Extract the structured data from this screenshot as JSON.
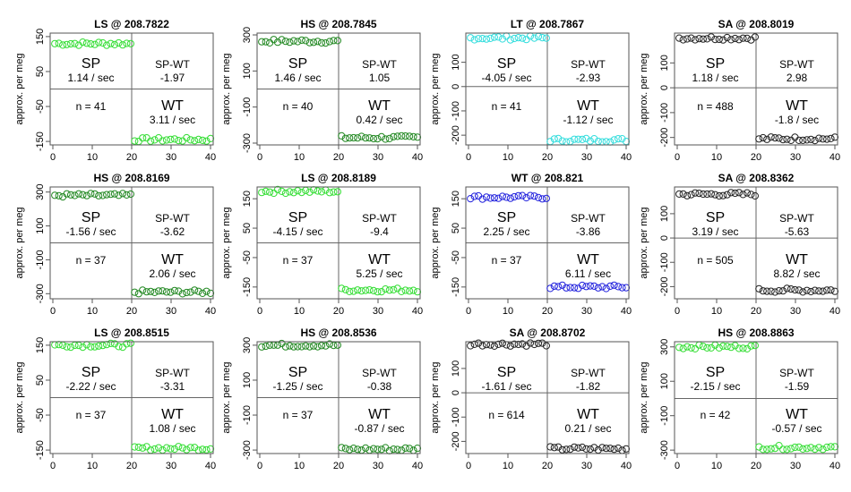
{
  "figure": {
    "ylabel": "approx. per meg",
    "xlim": [
      0,
      40
    ],
    "xticks": [
      0,
      10,
      20,
      30,
      40
    ],
    "quadrant_labels": {
      "sp": "SP",
      "wt": "WT",
      "diff": "SP-WT"
    },
    "n_prefix": "n = "
  },
  "colors": {
    "light_green": "#33dd33",
    "dark_green": "#228822",
    "cyan": "#33dddd",
    "blue": "#2222dd",
    "black": "#222222",
    "axis": "#555555",
    "divider": "#666666"
  },
  "chart_data": [
    {
      "type": "scatter",
      "title": "LS @ 208.7822",
      "color": "light_green",
      "ylim": [
        -160,
        160
      ],
      "yticks": [
        -150,
        -50,
        50,
        150
      ],
      "sp_level": 130,
      "wt_level": -145,
      "sp_rate": "1.14 / sec",
      "wt_rate": "3.11 / sec",
      "diff": "-1.97",
      "n": "41"
    },
    {
      "type": "scatter",
      "title": "HS @ 208.7845",
      "color": "dark_green",
      "ylim": [
        -310,
        310
      ],
      "yticks": [
        -300,
        -100,
        100,
        300
      ],
      "sp_level": 265,
      "wt_level": -270,
      "sp_rate": "1.46 / sec",
      "wt_rate": "0.42 / sec",
      "diff": "1.05",
      "n": "40"
    },
    {
      "type": "scatter",
      "title": "LT @ 208.7867",
      "color": "cyan",
      "ylim": [
        -240,
        220
      ],
      "yticks": [
        -200,
        -100,
        0,
        100
      ],
      "sp_level": 200,
      "wt_level": -220,
      "sp_rate": "-4.05 / sec",
      "wt_rate": "-1.12 / sec",
      "diff": "-2.93",
      "n": "41"
    },
    {
      "type": "scatter",
      "title": "SA @ 208.8019",
      "color": "black",
      "ylim": [
        -230,
        220
      ],
      "yticks": [
        -200,
        -100,
        0,
        100
      ],
      "sp_level": 200,
      "wt_level": -205,
      "sp_rate": "1.18 / sec",
      "wt_rate": "-1.8 / sec",
      "diff": "2.98",
      "n": "488"
    },
    {
      "type": "scatter",
      "title": "HS @ 208.8169",
      "color": "dark_green",
      "ylim": [
        -330,
        330
      ],
      "yticks": [
        -300,
        -100,
        100,
        300
      ],
      "sp_level": 280,
      "wt_level": -290,
      "sp_rate": "-1.56 / sec",
      "wt_rate": "2.06 / sec",
      "diff": "-3.62",
      "n": "37"
    },
    {
      "type": "scatter",
      "title": "LS @ 208.8189",
      "color": "light_green",
      "ylim": [
        -190,
        190
      ],
      "yticks": [
        -150,
        -50,
        50,
        150
      ],
      "sp_level": 175,
      "wt_level": -160,
      "sp_rate": "-4.15 / sec",
      "wt_rate": "5.25 / sec",
      "diff": "-9.4",
      "n": "37"
    },
    {
      "type": "scatter",
      "title": "WT @ 208.821",
      "color": "blue",
      "ylim": [
        -190,
        190
      ],
      "yticks": [
        -150,
        -50,
        50,
        150
      ],
      "sp_level": 155,
      "wt_level": -150,
      "sp_rate": "2.25 / sec",
      "wt_rate": "6.11 / sec",
      "diff": "-3.86",
      "n": "37"
    },
    {
      "type": "scatter",
      "title": "SA @ 208.8362",
      "color": "black",
      "ylim": [
        -250,
        210
      ],
      "yticks": [
        -200,
        -100,
        0,
        100
      ],
      "sp_level": 180,
      "wt_level": -215,
      "sp_rate": "3.19 / sec",
      "wt_rate": "8.82 / sec",
      "diff": "-5.63",
      "n": "505"
    },
    {
      "type": "scatter",
      "title": "LS @ 208.8515",
      "color": "light_green",
      "ylim": [
        -160,
        160
      ],
      "yticks": [
        -150,
        -50,
        50,
        150
      ],
      "sp_level": 150,
      "wt_level": -145,
      "sp_rate": "-2.22 / sec",
      "wt_rate": "1.08 / sec",
      "diff": "-3.31",
      "n": "37"
    },
    {
      "type": "scatter",
      "title": "HS @ 208.8536",
      "color": "dark_green",
      "ylim": [
        -320,
        320
      ],
      "yticks": [
        -300,
        -100,
        100,
        300
      ],
      "sp_level": 300,
      "wt_level": -295,
      "sp_rate": "-1.25 / sec",
      "wt_rate": "-0.87 / sec",
      "diff": "-0.38",
      "n": "37"
    },
    {
      "type": "scatter",
      "title": "SA @ 208.8702",
      "color": "black",
      "ylim": [
        -250,
        210
      ],
      "yticks": [
        -200,
        -100,
        0,
        100
      ],
      "sp_level": 200,
      "wt_level": -230,
      "sp_rate": "-1.61 / sec",
      "wt_rate": "0.21 / sec",
      "diff": "-1.82",
      "n": "614"
    },
    {
      "type": "scatter",
      "title": "HS @ 208.8863",
      "color": "light_green",
      "ylim": [
        -320,
        330
      ],
      "yticks": [
        -300,
        -100,
        100,
        300
      ],
      "sp_level": 300,
      "wt_level": -285,
      "sp_rate": "-2.15 / sec",
      "wt_rate": "-0.57 / sec",
      "diff": "-1.59",
      "n": "42"
    }
  ]
}
